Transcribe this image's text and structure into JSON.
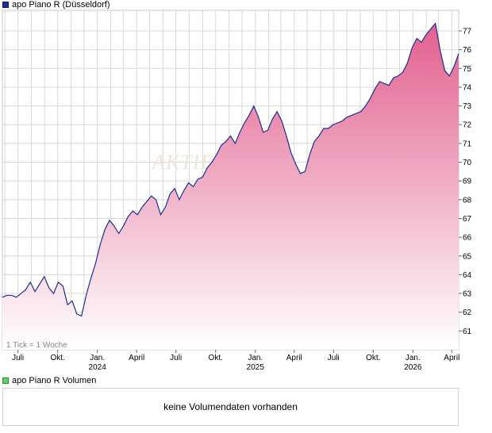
{
  "legend": {
    "price_label": "apo Piano R (Düsseldorf)",
    "volume_label": "apo Piano R Volumen"
  },
  "volume_panel": {
    "message": "keine Volumendaten vorhanden"
  },
  "note": "1 Tick = 1 Woche",
  "watermark": "AKTIE",
  "colors": {
    "line": "#1a2f8f",
    "fill_top": "#e2608e",
    "fill_bottom": "#ffffff",
    "grid": "#d8d8d8"
  },
  "chart_data": {
    "type": "area",
    "series": [
      {
        "values": [
          62.8,
          62.9,
          62.9,
          62.8,
          63.0,
          63.2,
          63.6,
          63.1,
          63.5,
          63.9,
          63.3,
          63.0,
          63.6,
          63.4,
          62.4,
          62.6,
          61.9,
          61.8,
          62.9,
          63.8,
          64.6,
          65.6,
          66.4,
          66.9,
          66.6,
          66.2,
          66.6,
          67.1,
          67.4,
          67.2,
          67.6,
          67.9,
          68.2,
          68.0,
          67.2,
          67.6,
          68.3,
          68.6,
          68.0,
          68.5,
          68.9,
          68.7,
          69.1,
          69.2,
          69.7,
          70.0,
          70.4,
          70.9,
          71.1,
          71.4,
          71.0,
          71.6,
          72.1,
          72.5,
          73.0,
          72.4,
          71.6,
          71.7,
          72.3,
          72.7,
          72.2,
          71.4,
          70.5,
          69.9,
          69.4,
          69.5,
          70.4,
          71.1,
          71.4,
          71.8,
          71.8,
          72.0,
          72.1,
          72.2,
          72.4,
          72.5,
          72.6,
          72.7,
          73.0,
          73.4,
          73.9,
          74.3,
          74.2,
          74.1,
          74.5,
          74.6,
          74.8,
          75.3,
          76.1,
          76.6,
          76.4,
          76.8,
          77.1,
          77.4,
          76.0,
          74.9,
          74.6,
          75.1,
          75.8
        ]
      }
    ],
    "x_start": "2023-05-26",
    "x_end": "2026-04-17",
    "x_ticks": [
      "Juli",
      "Okt.",
      "Jan.",
      "April",
      "Juli",
      "Okt.",
      "Jan.",
      "April",
      "Juli",
      "Okt.",
      "Jan.",
      "April"
    ],
    "x_year_labels": [
      "2024",
      "2025",
      "2026"
    ],
    "y_ticks": [
      61,
      62,
      63,
      64,
      65,
      66,
      67,
      68,
      69,
      70,
      71,
      72,
      73,
      74,
      75,
      76,
      77
    ],
    "ylim": [
      60.0,
      78.1
    ],
    "grid": true,
    "y_axis_side": "right"
  }
}
